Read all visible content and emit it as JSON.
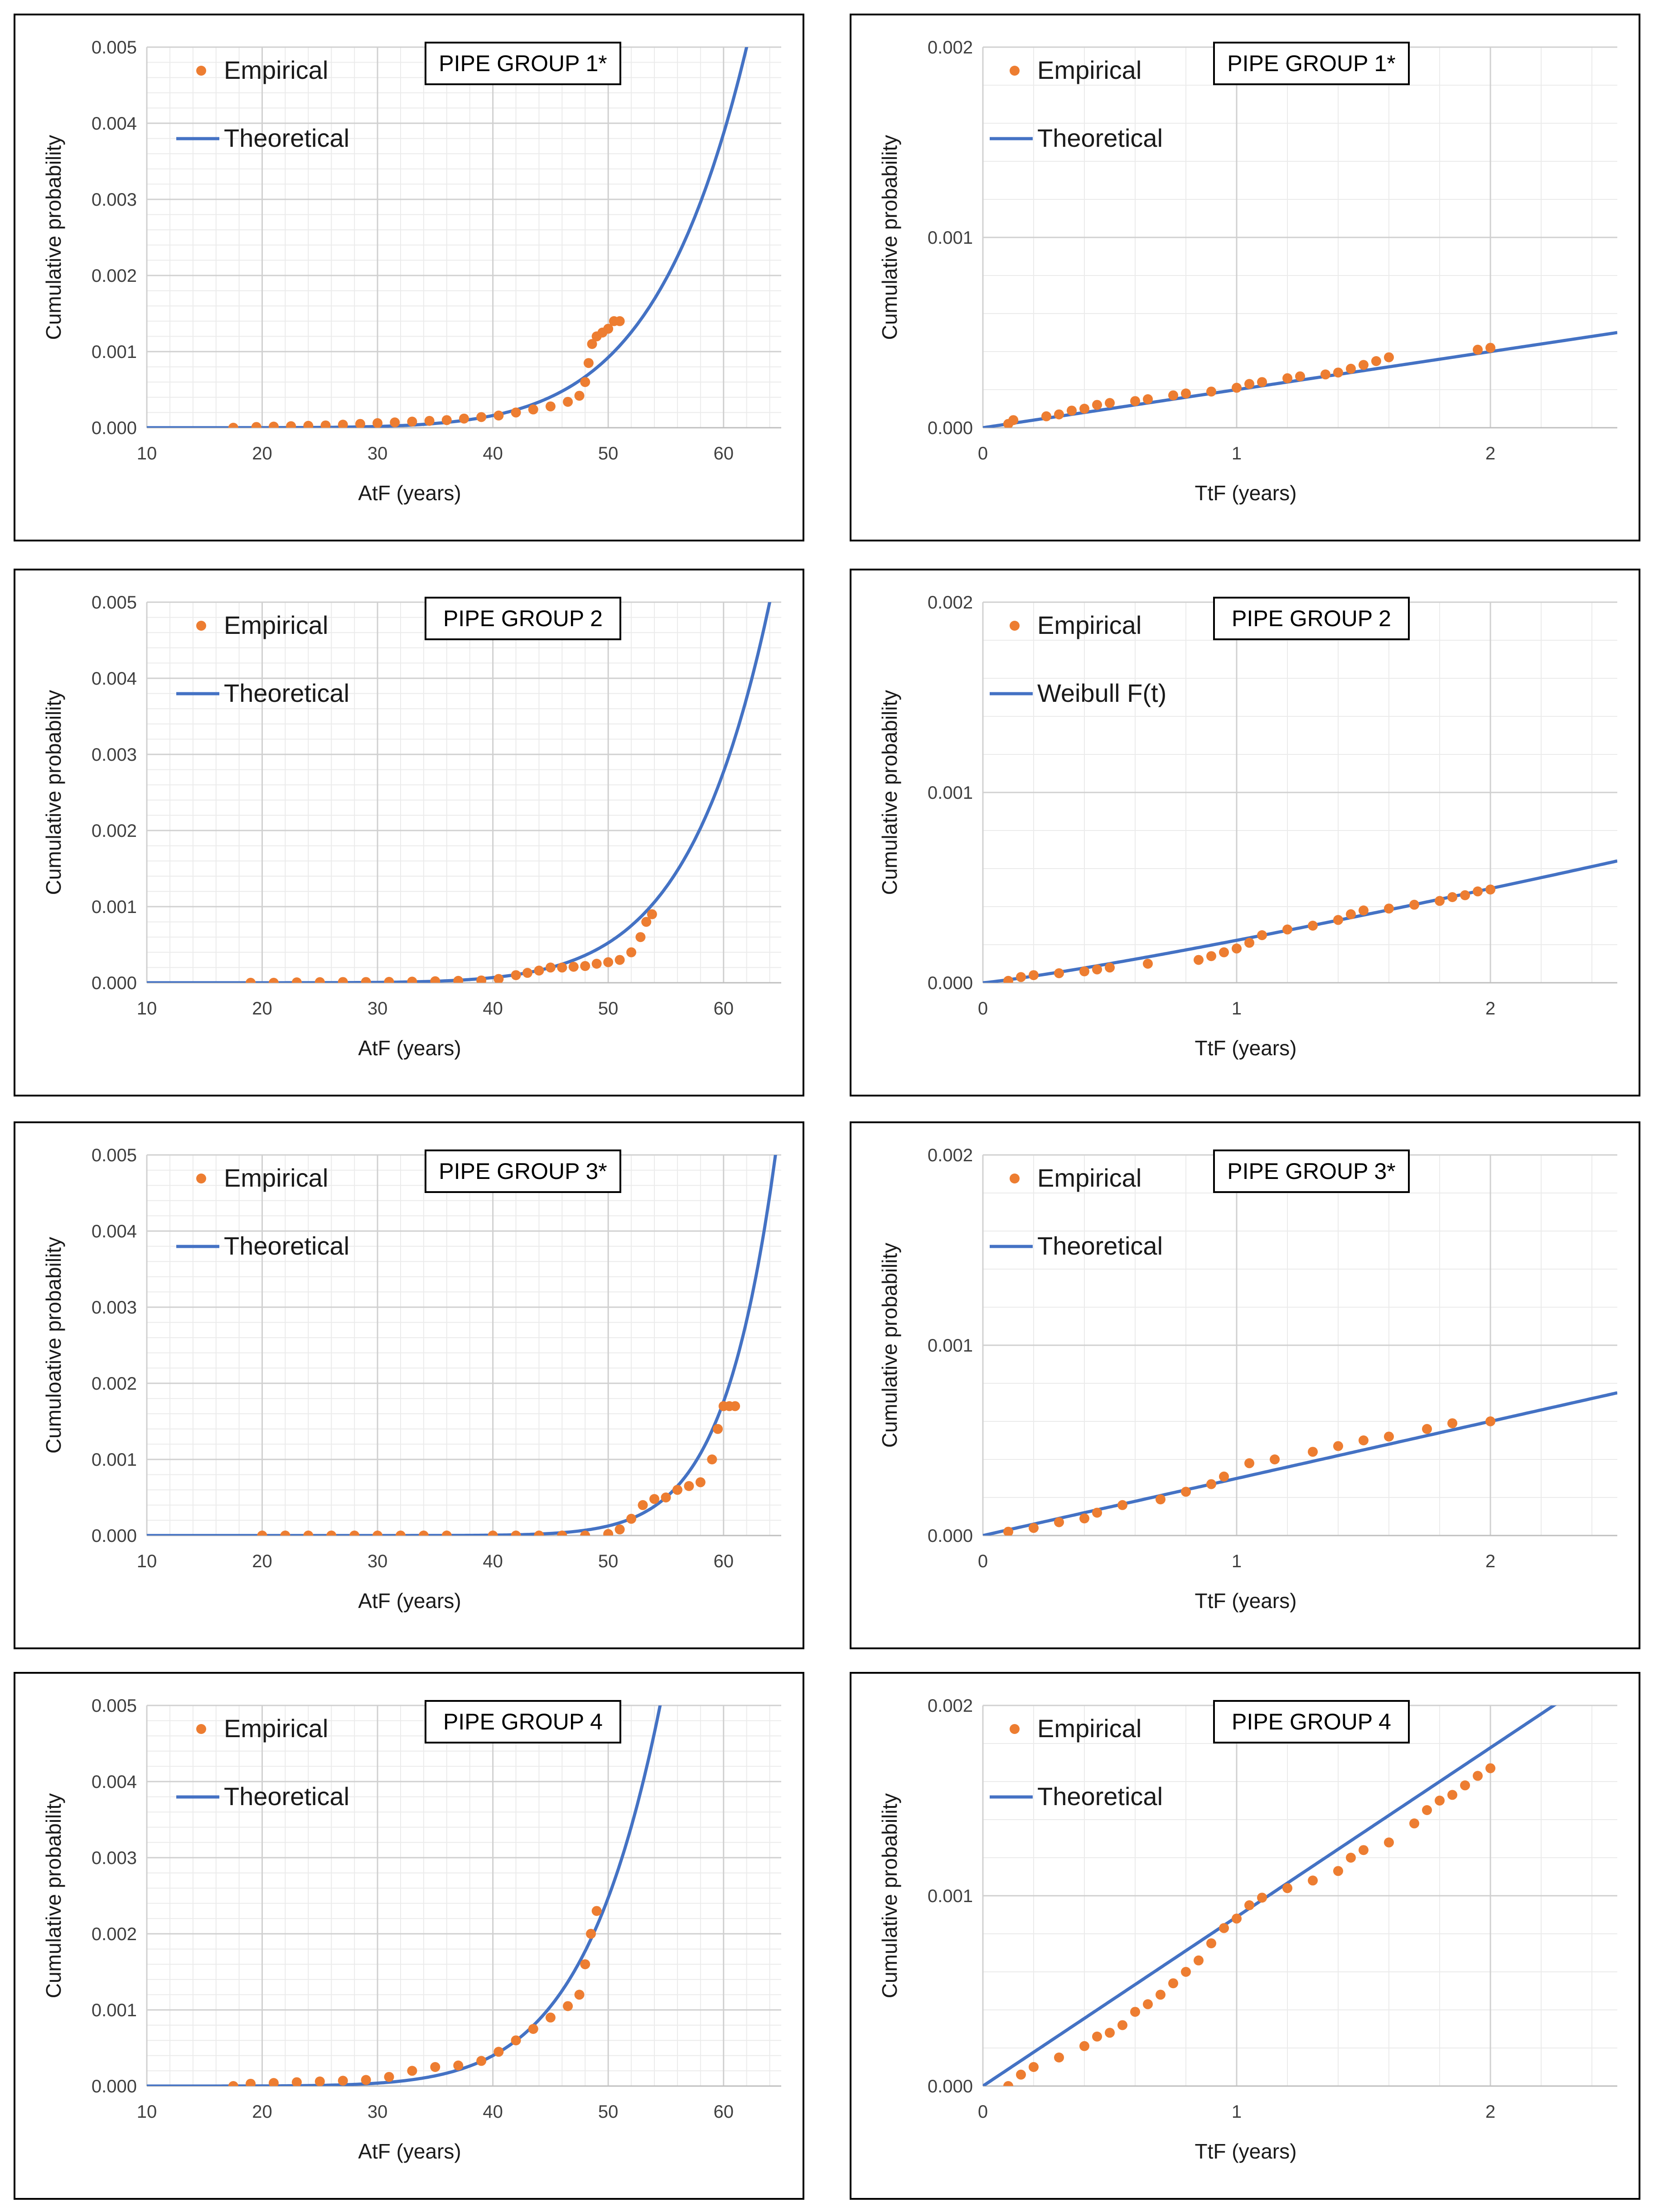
{
  "colors": {
    "empirical": "#ED7D31",
    "theoretical": "#4472C4",
    "grid_major": "#d0d0d0",
    "grid_minor": "#ebebeb",
    "axis": "#bfbfbf"
  },
  "chart_data": [
    {
      "id": "atf-1",
      "type": "scatter+line",
      "title": "PIPE GROUP 1*",
      "xlabel": "AtF (years)",
      "ylabel": "Cumulative probability",
      "xlim": [
        10,
        65
      ],
      "ylim": [
        0,
        0.005
      ],
      "xticks": [
        "10",
        "20",
        "30",
        "40",
        "50",
        "60"
      ],
      "yticks": [
        "0.000",
        "0.001",
        "0.002",
        "0.003",
        "0.004",
        "0.005"
      ],
      "legend": [
        "Empirical",
        "Theoretical"
      ],
      "theoretical": {
        "model": "weibull",
        "x0": 40,
        "y0": 0.00016,
        "x1": 62,
        "y1": 0.005,
        "from": 10,
        "to": 65
      },
      "empirical": [
        [
          17.5,
          0
        ],
        [
          19.5,
          1e-05
        ],
        [
          21,
          1.5e-05
        ],
        [
          22.5,
          2e-05
        ],
        [
          24,
          2.5e-05
        ],
        [
          25.5,
          3e-05
        ],
        [
          27,
          4e-05
        ],
        [
          28.5,
          5e-05
        ],
        [
          30,
          6e-05
        ],
        [
          31.5,
          7e-05
        ],
        [
          33,
          8e-05
        ],
        [
          34.5,
          9e-05
        ],
        [
          36,
          0.0001
        ],
        [
          37.5,
          0.00012
        ],
        [
          39,
          0.00014
        ],
        [
          40.5,
          0.00016
        ],
        [
          42,
          0.0002
        ],
        [
          43.5,
          0.00024
        ],
        [
          45,
          0.00028
        ],
        [
          46.5,
          0.00034
        ],
        [
          47.5,
          0.00042
        ],
        [
          48,
          0.0006
        ],
        [
          48.3,
          0.00085
        ],
        [
          48.6,
          0.0011
        ],
        [
          49,
          0.0012
        ],
        [
          49.5,
          0.00125
        ],
        [
          50,
          0.0013
        ],
        [
          50.5,
          0.0014
        ],
        [
          51,
          0.0014
        ]
      ]
    },
    {
      "id": "ttf-1",
      "type": "scatter+line",
      "title": "PIPE GROUP 1*",
      "xlabel": "TtF (years)",
      "ylabel": "Cumulative probability",
      "xlim": [
        0,
        2.5
      ],
      "ylim": [
        0,
        0.002
      ],
      "xticks": [
        "0",
        "1",
        "2"
      ],
      "yticks": [
        "0.000",
        "0.001",
        "0.002"
      ],
      "legend": [
        "Empirical",
        "Theoretical"
      ],
      "theoretical": {
        "model": "line",
        "x0": 0,
        "y0": 0,
        "x1": 2.5,
        "y1": 0.0005
      },
      "empirical": [
        [
          0.1,
          2e-05
        ],
        [
          0.12,
          4e-05
        ],
        [
          0.25,
          6e-05
        ],
        [
          0.3,
          7e-05
        ],
        [
          0.35,
          9e-05
        ],
        [
          0.4,
          0.0001
        ],
        [
          0.45,
          0.00012
        ],
        [
          0.5,
          0.00013
        ],
        [
          0.6,
          0.00014
        ],
        [
          0.65,
          0.00015
        ],
        [
          0.75,
          0.00017
        ],
        [
          0.8,
          0.00018
        ],
        [
          0.9,
          0.00019
        ],
        [
          1.0,
          0.00021
        ],
        [
          1.05,
          0.00023
        ],
        [
          1.1,
          0.00024
        ],
        [
          1.2,
          0.00026
        ],
        [
          1.25,
          0.00027
        ],
        [
          1.35,
          0.00028
        ],
        [
          1.4,
          0.00029
        ],
        [
          1.45,
          0.00031
        ],
        [
          1.5,
          0.00033
        ],
        [
          1.55,
          0.00035
        ],
        [
          1.6,
          0.00037
        ],
        [
          1.95,
          0.00041
        ],
        [
          2.0,
          0.00042
        ]
      ]
    },
    {
      "id": "atf-2",
      "type": "scatter+line",
      "title": "PIPE GROUP 2",
      "xlabel": "AtF (years)",
      "ylabel": "Cumulative probability",
      "xlim": [
        10,
        65
      ],
      "ylim": [
        0,
        0.005
      ],
      "xticks": [
        "10",
        "20",
        "30",
        "40",
        "50",
        "60"
      ],
      "yticks": [
        "0.000",
        "0.001",
        "0.002",
        "0.003",
        "0.004",
        "0.005"
      ],
      "legend": [
        "Empirical",
        "Theoretical"
      ],
      "theoretical": {
        "model": "weibull",
        "x0": 45,
        "y0": 0.0002,
        "x1": 64,
        "y1": 0.005,
        "from": 10,
        "to": 65
      },
      "empirical": [
        [
          19,
          0
        ],
        [
          21,
          0
        ],
        [
          23,
          5e-06
        ],
        [
          25,
          8e-06
        ],
        [
          27,
          1e-05
        ],
        [
          29,
          1e-05
        ],
        [
          31,
          1.2e-05
        ],
        [
          33,
          1.5e-05
        ],
        [
          35,
          2e-05
        ],
        [
          37,
          2.5e-05
        ],
        [
          39,
          3e-05
        ],
        [
          40.5,
          5e-05
        ],
        [
          42,
          0.0001
        ],
        [
          43,
          0.00013
        ],
        [
          44,
          0.00016
        ],
        [
          45,
          0.0002
        ],
        [
          46,
          0.0002
        ],
        [
          47,
          0.00021
        ],
        [
          48,
          0.00022
        ],
        [
          49,
          0.00025
        ],
        [
          50,
          0.00027
        ],
        [
          51,
          0.0003
        ],
        [
          52,
          0.0004
        ],
        [
          52.8,
          0.0006
        ],
        [
          53.3,
          0.0008
        ],
        [
          53.8,
          0.0009
        ]
      ]
    },
    {
      "id": "ttf-2",
      "type": "scatter+line",
      "title": "PIPE GROUP 2",
      "xlabel": "TtF (years)",
      "ylabel": "Cumulative probability",
      "xlim": [
        0,
        2.5
      ],
      "ylim": [
        0,
        0.002
      ],
      "xticks": [
        "0",
        "1",
        "2"
      ],
      "yticks": [
        "0.000",
        "0.001",
        "0.002"
      ],
      "legend": [
        "Empirical",
        "Weibull F(t)"
      ],
      "theoretical": {
        "model": "powerline",
        "x0": 0,
        "y0": 0,
        "x1": 2.5,
        "y1": 0.00064,
        "k": 1.15
      },
      "empirical": [
        [
          0.1,
          1e-05
        ],
        [
          0.15,
          3e-05
        ],
        [
          0.2,
          4e-05
        ],
        [
          0.3,
          5e-05
        ],
        [
          0.4,
          6e-05
        ],
        [
          0.45,
          7e-05
        ],
        [
          0.5,
          8e-05
        ],
        [
          0.65,
          0.0001
        ],
        [
          0.85,
          0.00012
        ],
        [
          0.9,
          0.00014
        ],
        [
          0.95,
          0.00016
        ],
        [
          1.0,
          0.00018
        ],
        [
          1.05,
          0.00021
        ],
        [
          1.1,
          0.00025
        ],
        [
          1.2,
          0.00028
        ],
        [
          1.3,
          0.0003
        ],
        [
          1.4,
          0.00033
        ],
        [
          1.45,
          0.00036
        ],
        [
          1.5,
          0.00038
        ],
        [
          1.6,
          0.00039
        ],
        [
          1.7,
          0.00041
        ],
        [
          1.8,
          0.00043
        ],
        [
          1.85,
          0.00045
        ],
        [
          1.9,
          0.00046
        ],
        [
          1.95,
          0.00048
        ],
        [
          2.0,
          0.00049
        ]
      ]
    },
    {
      "id": "atf-3",
      "type": "scatter+line",
      "title": "PIPE GROUP 3*",
      "xlabel": "AtF (years)",
      "ylabel": "Cumuloative probability",
      "xlim": [
        10,
        65
      ],
      "ylim": [
        0,
        0.005
      ],
      "xticks": [
        "10",
        "20",
        "30",
        "40",
        "50",
        "60"
      ],
      "yticks": [
        "0.000",
        "0.001",
        "0.002",
        "0.003",
        "0.004",
        "0.005"
      ],
      "legend": [
        "Empirical",
        "Theoretical"
      ],
      "theoretical": {
        "model": "weibull",
        "x0": 55,
        "y0": 0.0005,
        "x1": 64.5,
        "y1": 0.005,
        "from": 10,
        "to": 65
      },
      "empirical": [
        [
          20,
          0
        ],
        [
          22,
          0
        ],
        [
          24,
          0
        ],
        [
          26,
          0
        ],
        [
          28,
          0
        ],
        [
          30,
          0
        ],
        [
          32,
          0
        ],
        [
          34,
          0
        ],
        [
          36,
          0
        ],
        [
          40,
          0
        ],
        [
          42,
          0
        ],
        [
          44,
          0
        ],
        [
          46,
          0
        ],
        [
          48,
          0
        ],
        [
          50,
          2e-05
        ],
        [
          51,
          8e-05
        ],
        [
          52,
          0.00022
        ],
        [
          53,
          0.0004
        ],
        [
          54,
          0.00048
        ],
        [
          55,
          0.0005
        ],
        [
          56,
          0.0006
        ],
        [
          57,
          0.00065
        ],
        [
          58,
          0.0007
        ],
        [
          59,
          0.001
        ],
        [
          59.5,
          0.0014
        ],
        [
          60,
          0.0017
        ],
        [
          60.5,
          0.0017
        ],
        [
          61,
          0.0017
        ]
      ]
    },
    {
      "id": "ttf-3",
      "type": "scatter+line",
      "title": "PIPE GROUP 3*",
      "xlabel": "TtF (years)",
      "ylabel": "Cumulative probability",
      "xlim": [
        0,
        2.5
      ],
      "ylim": [
        0,
        0.002
      ],
      "xticks": [
        "0",
        "1",
        "2"
      ],
      "yticks": [
        "0.000",
        "0.001",
        "0.002"
      ],
      "legend": [
        "Empirical",
        "Theoretical"
      ],
      "theoretical": {
        "model": "line",
        "x0": 0,
        "y0": 0,
        "x1": 2.5,
        "y1": 0.00075
      },
      "empirical": [
        [
          0.1,
          2e-05
        ],
        [
          0.2,
          4e-05
        ],
        [
          0.3,
          7e-05
        ],
        [
          0.4,
          9e-05
        ],
        [
          0.45,
          0.00012
        ],
        [
          0.55,
          0.00016
        ],
        [
          0.7,
          0.00019
        ],
        [
          0.8,
          0.00023
        ],
        [
          0.9,
          0.00027
        ],
        [
          0.95,
          0.00031
        ],
        [
          1.05,
          0.00038
        ],
        [
          1.15,
          0.0004
        ],
        [
          1.3,
          0.00044
        ],
        [
          1.4,
          0.00047
        ],
        [
          1.5,
          0.0005
        ],
        [
          1.6,
          0.00052
        ],
        [
          1.75,
          0.00056
        ],
        [
          1.85,
          0.00059
        ],
        [
          2.0,
          0.0006
        ]
      ]
    },
    {
      "id": "atf-4",
      "type": "scatter+line",
      "title": "PIPE GROUP 4",
      "xlabel": "AtF (years)",
      "ylabel": "Cumulative probability",
      "xlim": [
        10,
        65
      ],
      "ylim": [
        0,
        0.005
      ],
      "xticks": [
        "10",
        "20",
        "30",
        "40",
        "50",
        "60"
      ],
      "yticks": [
        "0.000",
        "0.001",
        "0.002",
        "0.003",
        "0.004",
        "0.005"
      ],
      "legend": [
        "Empirical",
        "Theoretical"
      ],
      "theoretical": {
        "model": "weibull",
        "x0": 40,
        "y0": 0.0004,
        "x1": 54.5,
        "y1": 0.005,
        "from": 10,
        "to": 65
      },
      "empirical": [
        [
          17.5,
          0
        ],
        [
          19,
          3e-05
        ],
        [
          21,
          4e-05
        ],
        [
          23,
          5e-05
        ],
        [
          25,
          6e-05
        ],
        [
          27,
          7e-05
        ],
        [
          29,
          8e-05
        ],
        [
          31,
          0.00012
        ],
        [
          33,
          0.0002
        ],
        [
          35,
          0.00025
        ],
        [
          37,
          0.00027
        ],
        [
          39,
          0.00033
        ],
        [
          40.5,
          0.00045
        ],
        [
          42,
          0.0006
        ],
        [
          43.5,
          0.00075
        ],
        [
          45,
          0.0009
        ],
        [
          46.5,
          0.00105
        ],
        [
          47.5,
          0.0012
        ],
        [
          48,
          0.0016
        ],
        [
          48.5,
          0.002
        ],
        [
          49,
          0.0023
        ]
      ]
    },
    {
      "id": "ttf-4",
      "type": "scatter+line",
      "title": "PIPE GROUP 4",
      "xlabel": "TtF (years)",
      "ylabel": "Cumulative probability",
      "xlim": [
        0,
        2.5
      ],
      "ylim": [
        0,
        0.002
      ],
      "xticks": [
        "0",
        "1",
        "2"
      ],
      "yticks": [
        "0.000",
        "0.001",
        "0.002"
      ],
      "legend": [
        "Empirical",
        "Theoretical"
      ],
      "theoretical": {
        "model": "line",
        "x0": 0,
        "y0": 0,
        "x1": 2.25,
        "y1": 0.002
      },
      "empirical": [
        [
          0.1,
          0
        ],
        [
          0.15,
          6e-05
        ],
        [
          0.2,
          0.0001
        ],
        [
          0.3,
          0.00015
        ],
        [
          0.4,
          0.00021
        ],
        [
          0.45,
          0.00026
        ],
        [
          0.5,
          0.00028
        ],
        [
          0.55,
          0.00032
        ],
        [
          0.6,
          0.00039
        ],
        [
          0.65,
          0.00043
        ],
        [
          0.7,
          0.00048
        ],
        [
          0.75,
          0.00054
        ],
        [
          0.8,
          0.0006
        ],
        [
          0.85,
          0.00066
        ],
        [
          0.9,
          0.00075
        ],
        [
          0.95,
          0.00083
        ],
        [
          1.0,
          0.00088
        ],
        [
          1.05,
          0.00095
        ],
        [
          1.1,
          0.00099
        ],
        [
          1.2,
          0.00104
        ],
        [
          1.3,
          0.00108
        ],
        [
          1.4,
          0.00113
        ],
        [
          1.45,
          0.0012
        ],
        [
          1.5,
          0.00124
        ],
        [
          1.6,
          0.00128
        ],
        [
          1.7,
          0.00138
        ],
        [
          1.75,
          0.00145
        ],
        [
          1.8,
          0.0015
        ],
        [
          1.85,
          0.00153
        ],
        [
          1.9,
          0.00158
        ],
        [
          1.95,
          0.00163
        ],
        [
          2.0,
          0.00167
        ]
      ]
    }
  ]
}
